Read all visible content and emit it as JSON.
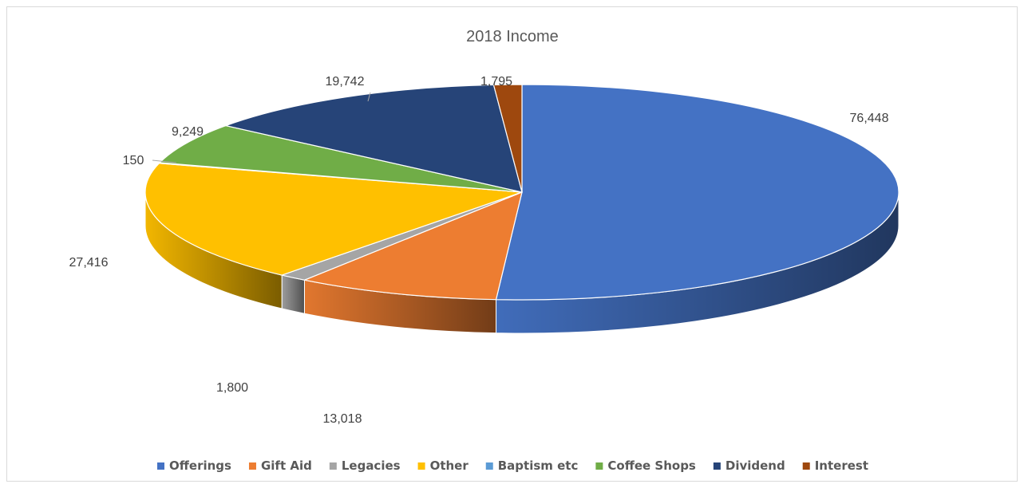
{
  "chart_data": {
    "type": "pie",
    "title": "2018 Income",
    "categories": [
      "Offerings",
      "Gift Aid",
      "Legacies",
      "Other",
      "Baptism etc",
      "Coffee Shops",
      "Dividend",
      "Interest"
    ],
    "values": [
      76448,
      13018,
      1800,
      27416,
      150,
      9249,
      19742,
      1795
    ],
    "value_labels": [
      "76,448",
      "13,018",
      "1,800",
      "27,416",
      "150",
      "9,249",
      "19,742",
      "1,795"
    ],
    "colors": [
      "#4472C4",
      "#ED7D31",
      "#A5A5A5",
      "#FFC000",
      "#5B9BD5",
      "#70AD47",
      "#264478",
      "#9E480E"
    ],
    "style": "3d",
    "legend_position": "bottom"
  }
}
